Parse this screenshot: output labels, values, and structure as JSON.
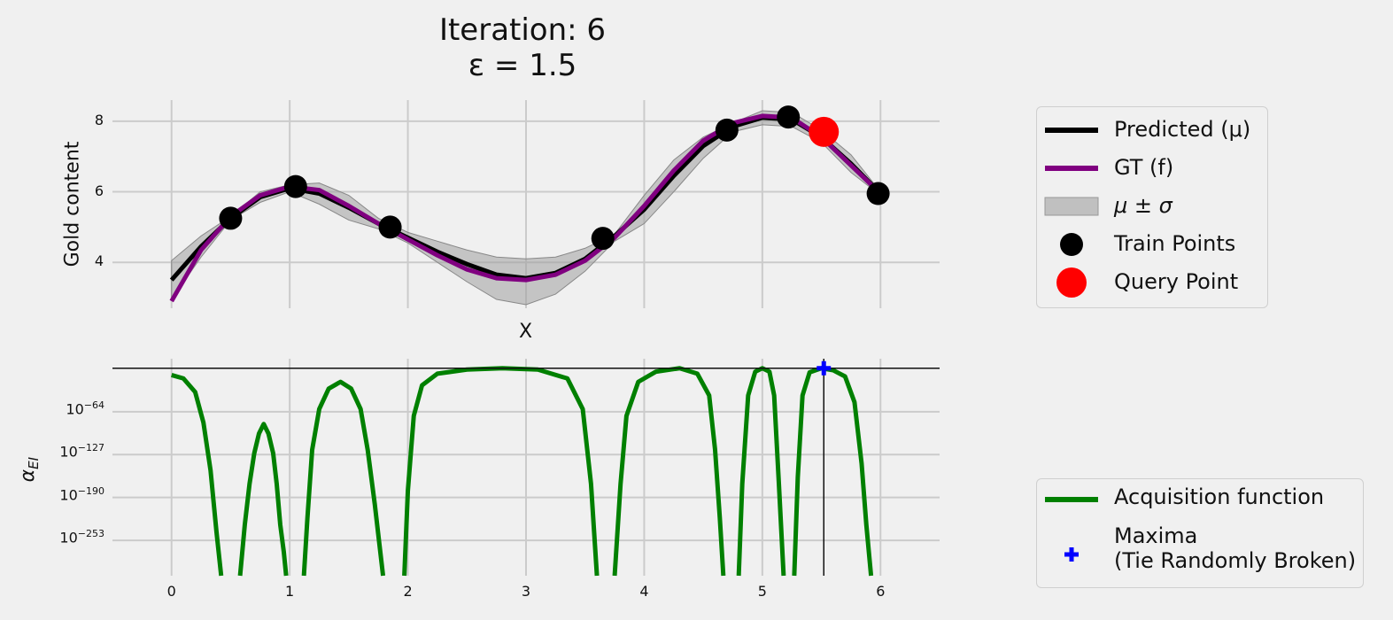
{
  "title": {
    "line1": "Iteration: 6",
    "line2": "ε = 1.5"
  },
  "colors": {
    "background": "#f0f0f0",
    "grid": "#cbcbcb",
    "predicted": "#000000",
    "gt": "#800080",
    "sigma_band": "#a0a0a0",
    "train": "#000000",
    "query": "#ff0000",
    "acquisition": "#008000",
    "maxima": "#0000ff"
  },
  "top_legend": [
    {
      "label": "Predicted (μ)",
      "symbol": "line-black"
    },
    {
      "label": "GT (f)",
      "symbol": "line-purple"
    },
    {
      "label": "μ ± σ",
      "symbol": "band-gray"
    },
    {
      "label": "Train Points",
      "symbol": "dot-black"
    },
    {
      "label": "Query Point",
      "symbol": "dot-red"
    }
  ],
  "bottom_legend": [
    {
      "label": "Acquisition function",
      "symbol": "line-green"
    },
    {
      "label": "Maxima\n(Tie Randomly Broken)",
      "symbol": "plus-blue"
    }
  ],
  "chart_data": [
    {
      "type": "line",
      "ylabel": "Gold content",
      "xlabel": "X",
      "xlim": [
        -0.5,
        6.5
      ],
      "ylim": [
        2.7,
        8.6
      ],
      "xticks": [
        0,
        1,
        2,
        3,
        4,
        5,
        6
      ],
      "yticks": [
        4,
        6,
        8
      ],
      "grid": true,
      "series": [
        {
          "name": "GT (f)",
          "x": [
            0,
            0.25,
            0.5,
            0.75,
            1,
            1.25,
            1.5,
            1.75,
            2,
            2.25,
            2.5,
            2.75,
            3,
            3.25,
            3.5,
            3.75,
            4,
            4.25,
            4.5,
            4.75,
            5,
            5.25,
            5.5,
            5.75,
            6
          ],
          "y": [
            2.9,
            4.35,
            5.3,
            5.9,
            6.15,
            6.05,
            5.6,
            5.1,
            4.65,
            4.2,
            3.8,
            3.55,
            3.5,
            3.65,
            4.05,
            4.7,
            5.6,
            6.6,
            7.45,
            7.95,
            8.15,
            8.1,
            7.55,
            6.75,
            5.95
          ]
        },
        {
          "name": "Predicted (μ)",
          "x": [
            0,
            0.25,
            0.5,
            0.75,
            1,
            1.25,
            1.5,
            1.75,
            2,
            2.25,
            2.5,
            2.75,
            3,
            3.25,
            3.5,
            3.75,
            4,
            4.25,
            4.5,
            4.75,
            5,
            5.25,
            5.5,
            5.75,
            6
          ],
          "y": [
            3.5,
            4.45,
            5.25,
            5.85,
            6.1,
            5.95,
            5.55,
            5.1,
            4.7,
            4.3,
            3.95,
            3.65,
            3.55,
            3.7,
            4.1,
            4.75,
            5.5,
            6.45,
            7.3,
            7.85,
            8.1,
            8.05,
            7.55,
            6.8,
            5.95
          ]
        },
        {
          "name": "μ ± σ",
          "x": [
            0,
            0.25,
            0.5,
            0.75,
            1,
            1.25,
            1.5,
            1.75,
            2,
            2.25,
            2.5,
            2.75,
            3,
            3.25,
            3.5,
            3.75,
            4,
            4.25,
            4.5,
            4.75,
            5,
            5.25,
            5.5,
            5.75,
            6
          ],
          "upper": [
            4.05,
            4.75,
            5.3,
            6.0,
            6.2,
            6.25,
            5.9,
            5.25,
            4.85,
            4.6,
            4.35,
            4.15,
            4.1,
            4.15,
            4.4,
            4.8,
            5.9,
            6.9,
            7.55,
            7.95,
            8.3,
            8.25,
            7.75,
            7.05,
            6.0
          ],
          "lower": [
            2.95,
            4.15,
            5.2,
            5.7,
            6.0,
            5.65,
            5.2,
            4.95,
            4.55,
            4.0,
            3.45,
            2.95,
            2.8,
            3.1,
            3.75,
            4.6,
            5.1,
            6.0,
            6.95,
            7.7,
            7.9,
            7.85,
            7.4,
            6.55,
            5.9
          ]
        }
      ],
      "train_points": {
        "x": [
          0.5,
          1.05,
          1.85,
          3.65,
          4.7,
          5.22,
          5.98
        ],
        "y": [
          5.25,
          6.15,
          5.0,
          4.68,
          7.75,
          8.12,
          5.95
        ]
      },
      "query_point": {
        "x": 5.52,
        "y": 7.7
      }
    },
    {
      "type": "line",
      "ylabel": "αEI",
      "xlabel": "",
      "xlim": [
        -0.5,
        6.5
      ],
      "ylim": [
        -305,
        14
      ],
      "yscale": "log10-exponent",
      "xticks": [
        0,
        1,
        2,
        3,
        4,
        5,
        6
      ],
      "yticks": [
        {
          "base": "10",
          "exp": "−64",
          "value": -64
        },
        {
          "base": "10",
          "exp": "−127",
          "value": -127
        },
        {
          "base": "10",
          "exp": "−190",
          "value": -190
        },
        {
          "base": "10",
          "exp": "−253",
          "value": -253
        }
      ],
      "grid": true,
      "segments": [
        {
          "x": [
            0,
            0.1,
            0.2,
            0.27,
            0.33,
            0.38,
            0.42
          ],
          "y": [
            -10,
            -15,
            -35,
            -80,
            -150,
            -240,
            -305
          ]
        },
        {
          "x": [
            0.58,
            0.62,
            0.66,
            0.7,
            0.74,
            0.78,
            0.82,
            0.86,
            0.89,
            0.92,
            0.95,
            0.97
          ],
          "y": [
            -305,
            -230,
            -170,
            -125,
            -96,
            -82,
            -96,
            -125,
            -170,
            -230,
            -270,
            -305
          ]
        },
        {
          "x": [
            1.12,
            1.15,
            1.19,
            1.25,
            1.33,
            1.43,
            1.52,
            1.6,
            1.66,
            1.72,
            1.76,
            1.79
          ],
          "y": [
            -305,
            -220,
            -120,
            -60,
            -30,
            -20,
            -30,
            -60,
            -120,
            -200,
            -260,
            -305
          ]
        },
        {
          "x": [
            1.97,
            2.0,
            2.05,
            2.12,
            2.25,
            2.5,
            2.8,
            3.1,
            3.35,
            3.48,
            3.55,
            3.6
          ],
          "y": [
            -305,
            -180,
            -70,
            -25,
            -8,
            -2,
            0,
            -2,
            -15,
            -60,
            -170,
            -305
          ]
        },
        {
          "x": [
            3.75,
            3.8,
            3.85,
            3.95,
            4.1,
            4.3,
            4.45,
            4.55,
            4.6,
            4.64,
            4.67
          ],
          "y": [
            -305,
            -170,
            -70,
            -20,
            -5,
            0,
            -8,
            -40,
            -120,
            -220,
            -305
          ]
        },
        {
          "x": [
            4.8,
            4.83,
            4.88,
            4.94,
            5.0,
            5.06,
            5.1,
            5.14,
            5.18
          ],
          "y": [
            -305,
            -170,
            -40,
            -5,
            0,
            -5,
            -40,
            -170,
            -305
          ]
        },
        {
          "x": [
            5.27,
            5.3,
            5.34,
            5.4,
            5.5,
            5.6,
            5.7,
            5.78,
            5.84,
            5.88,
            5.92
          ],
          "y": [
            -305,
            -160,
            -40,
            -6,
            0,
            -3,
            -12,
            -50,
            -140,
            -230,
            -305
          ]
        }
      ],
      "maxima": {
        "x": 5.52,
        "y": 0
      },
      "hline_y": 0,
      "vline_x": 5.52
    }
  ]
}
